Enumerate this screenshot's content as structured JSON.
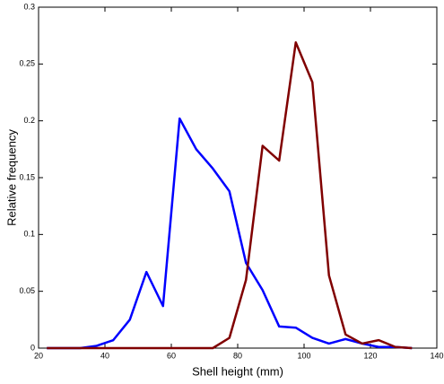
{
  "chart_data": {
    "type": "line",
    "xlabel": "Shell height (mm)",
    "ylabel": "Relative frequency",
    "x": [
      22.5,
      27.5,
      32.5,
      37.5,
      42.5,
      47.5,
      52.5,
      57.5,
      62.5,
      67.5,
      72.5,
      77.5,
      82.5,
      87.5,
      92.5,
      97.5,
      102.5,
      107.5,
      112.5,
      117.5,
      122.5,
      127.5,
      132.5
    ],
    "series": [
      {
        "color": "#0000ff",
        "values": [
          0,
          0,
          0,
          0.002,
          0.007,
          0.025,
          0.067,
          0.037,
          0.202,
          0.175,
          0.158,
          0.138,
          0.075,
          0.051,
          0.019,
          0.018,
          0.009,
          0.004,
          0.008,
          0.004,
          0.001,
          0.001,
          0
        ]
      },
      {
        "color": "#800000",
        "values": [
          0,
          0,
          0,
          0,
          0,
          0,
          0,
          0,
          0,
          0,
          0,
          0.009,
          0.06,
          0.178,
          0.165,
          0.269,
          0.234,
          0.064,
          0.012,
          0.004,
          0.007,
          0.001,
          0
        ]
      }
    ],
    "xlim": [
      20,
      140
    ],
    "xticks": [
      20,
      40,
      60,
      80,
      100,
      120,
      140
    ],
    "ylim": [
      0,
      0.3
    ],
    "yticks": [
      0,
      0.05,
      0.1,
      0.15,
      0.2,
      0.25,
      0.3
    ]
  }
}
